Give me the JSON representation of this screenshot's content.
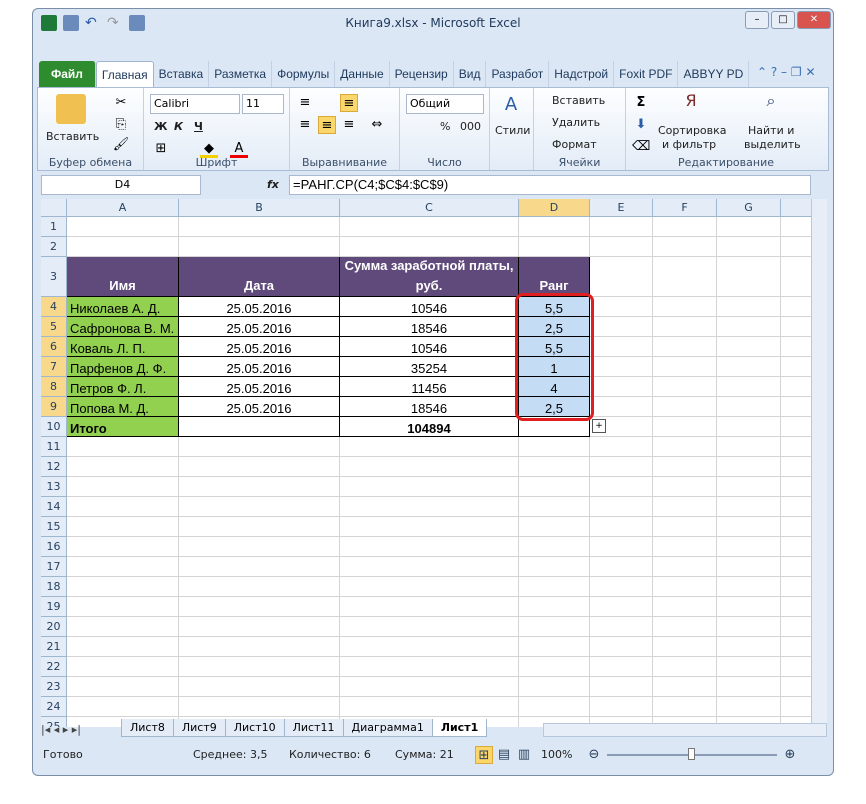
{
  "window": {
    "title": "Книга9.xlsx - Microsoft Excel"
  },
  "tabs": [
    "Файл",
    "Главная",
    "Вставка",
    "Разметка",
    "Формулы",
    "Данные",
    "Рецензир",
    "Вид",
    "Разработ",
    "Надстрой",
    "Foxit PDF",
    "ABBYY PD"
  ],
  "active_tab": 1,
  "ribbon": {
    "clipboard": {
      "paste": "Вставить",
      "label": "Буфер обмена"
    },
    "font": {
      "name": "Calibri",
      "size": "11",
      "bold": "Ж",
      "italic": "К",
      "underline": "Ч",
      "label": "Шрифт"
    },
    "alignment": {
      "label": "Выравнивание"
    },
    "number": {
      "format": "Общий",
      "percent": "%",
      "thousands": "000",
      "label": "Число"
    },
    "styles": {
      "label": "Стили"
    },
    "cells": {
      "insert": "Вставить",
      "delete": "Удалить",
      "format": "Формат",
      "label": "Ячейки"
    },
    "editing": {
      "sort": "Сортировка",
      "sort2": "и фильтр",
      "find": "Найти и",
      "find2": "выделить",
      "label": "Редактирование"
    }
  },
  "formula_bar": {
    "name_box": "D4",
    "fx": "fx",
    "formula": "=РАНГ.СР(C4;$C$4:$C$9)"
  },
  "columns": [
    "A",
    "B",
    "C",
    "D",
    "E",
    "F",
    "G"
  ],
  "header_row": [
    "Имя",
    "Дата",
    "Сумма заработной платы, руб.",
    "Ранг"
  ],
  "rows": [
    [
      "Николаев А. Д.",
      "25.05.2016",
      "10546",
      "5,5"
    ],
    [
      "Сафронова В. М.",
      "25.05.2016",
      "18546",
      "2,5"
    ],
    [
      "Коваль Л. П.",
      "25.05.2016",
      "10546",
      "5,5"
    ],
    [
      "Парфенов Д. Ф.",
      "25.05.2016",
      "35254",
      "1"
    ],
    [
      "Петров Ф. Л.",
      "25.05.2016",
      "11456",
      "4"
    ],
    [
      "Попова М. Д.",
      "25.05.2016",
      "18546",
      "2,5"
    ]
  ],
  "total_row": [
    "Итого",
    "",
    "104894",
    ""
  ],
  "sheet_tabs": [
    "Лист8",
    "Лист9",
    "Лист10",
    "Лист11",
    "Диаграмма1",
    "Лист1"
  ],
  "active_sheet": 5,
  "status": {
    "ready": "Готово",
    "average": "Среднее: 3,5",
    "count": "Количество: 6",
    "sum": "Сумма: 21",
    "zoom": "100%"
  },
  "colors": {
    "header_fill": "#604a7b",
    "name_fill": "#92d050",
    "selection": "#c5dcf5",
    "highlight_border": "#e02020"
  }
}
